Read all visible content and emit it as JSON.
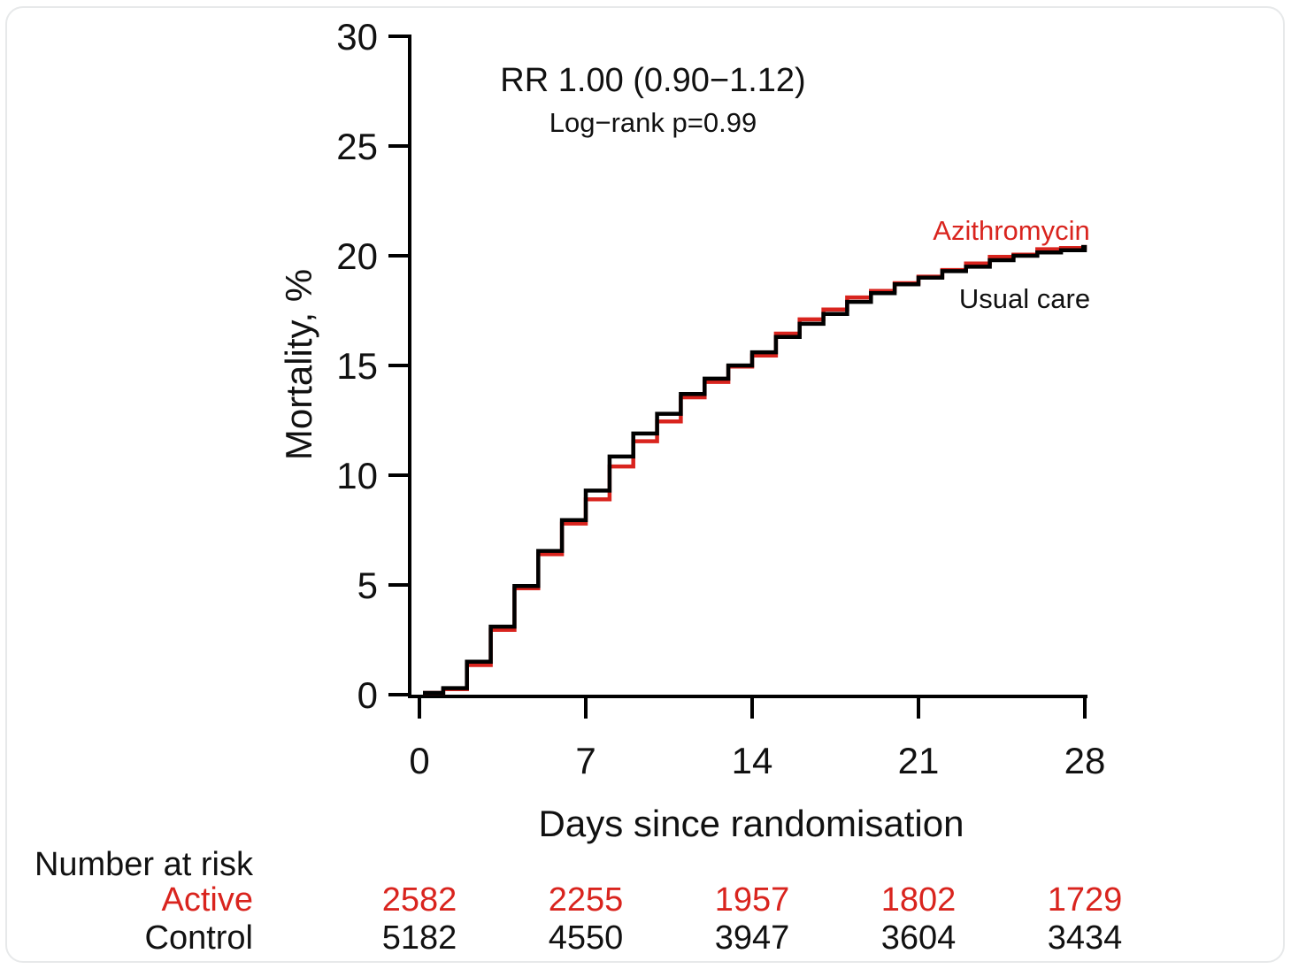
{
  "figure": {
    "ylabel": "Mortality, %",
    "xlabel": "Days since randomisation",
    "annotation": {
      "line1": "RR 1.00 (0.90−1.12)",
      "line2": "Log−rank p=0.99"
    },
    "curve_labels": {
      "azithromycin": "Azithromycin",
      "usual_care": "Usual care"
    },
    "colors": {
      "azithromycin": "#d9241e",
      "usual_care": "#000000",
      "axis": "#000000",
      "card_border": "#e7e9ea"
    }
  },
  "chart_data": {
    "type": "line",
    "subtype": "kaplan-meier-step",
    "title": "",
    "xlabel": "Days since randomisation",
    "ylabel": "Mortality, %",
    "xlim": [
      0,
      28
    ],
    "ylim": [
      0,
      30
    ],
    "xticks": [
      0,
      7,
      14,
      21,
      28
    ],
    "yticks": [
      0,
      5,
      10,
      15,
      20,
      25,
      30
    ],
    "grid": false,
    "legend_position": "labels-at-curve-end",
    "x": [
      0,
      1,
      2,
      3,
      4,
      5,
      6,
      7,
      8,
      9,
      10,
      11,
      12,
      13,
      14,
      15,
      16,
      17,
      18,
      19,
      20,
      21,
      22,
      23,
      24,
      25,
      26,
      27,
      28
    ],
    "series": [
      {
        "name": "Azithromycin",
        "color": "#d9241e",
        "values": [
          0.08,
          0.25,
          1.35,
          2.95,
          4.85,
          6.4,
          7.8,
          8.9,
          10.4,
          11.55,
          12.45,
          13.55,
          14.25,
          14.95,
          15.45,
          16.45,
          17.1,
          17.55,
          18.1,
          18.4,
          18.75,
          19.05,
          19.35,
          19.65,
          19.95,
          20.05,
          20.3,
          20.35,
          20.4
        ]
      },
      {
        "name": "Usual care",
        "color": "#000000",
        "values": [
          0.08,
          0.3,
          1.5,
          3.1,
          4.95,
          6.55,
          7.95,
          9.3,
          10.85,
          11.9,
          12.8,
          13.7,
          14.4,
          15.0,
          15.6,
          16.3,
          16.9,
          17.35,
          17.9,
          18.3,
          18.7,
          19.0,
          19.3,
          19.5,
          19.8,
          20.0,
          20.15,
          20.25,
          20.4
        ]
      }
    ],
    "annotations": [
      "RR 1.00 (0.90−1.12)",
      "Log−rank p=0.99"
    ]
  },
  "risk_table": {
    "header": "Number at risk",
    "columns_days": [
      0,
      7,
      14,
      21,
      28
    ],
    "rows": [
      {
        "label": "Active",
        "color": "#d9241e",
        "values": [
          "2582",
          "2255",
          "1957",
          "1802",
          "1729"
        ]
      },
      {
        "label": "Control",
        "color": "#000000",
        "values": [
          "5182",
          "4550",
          "3947",
          "3604",
          "3434"
        ]
      }
    ]
  }
}
